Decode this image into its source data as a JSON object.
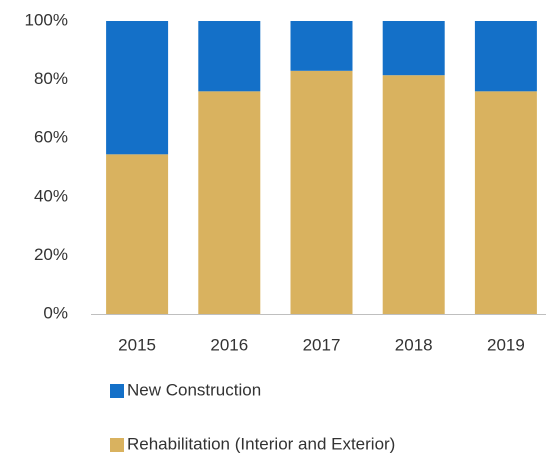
{
  "chart_data": {
    "type": "stacked_bar",
    "categories": [
      "2015",
      "2016",
      "2017",
      "2018",
      "2019"
    ],
    "series": [
      {
        "name": "New Construction",
        "color": "#1470c8",
        "values": [
          45.5,
          24,
          17,
          18.5,
          24
        ]
      },
      {
        "name": "Rehabilitation (Interior and Exterior)",
        "color": "#d9b25f",
        "values": [
          54.5,
          76,
          83,
          81.5,
          76
        ]
      }
    ],
    "ylim": [
      0,
      100
    ],
    "yticks": [
      {
        "value": 0,
        "label": "0%"
      },
      {
        "value": 20,
        "label": "20%"
      },
      {
        "value": 40,
        "label": "40%"
      },
      {
        "value": 60,
        "label": "60%"
      },
      {
        "value": 80,
        "label": "80%"
      },
      {
        "value": 100,
        "label": "100%"
      }
    ],
    "grid": false
  }
}
